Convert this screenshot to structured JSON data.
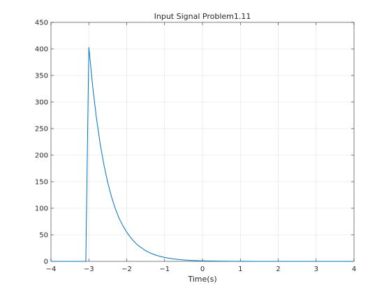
{
  "chart_data": {
    "type": "line",
    "title": "Input Signal Problem1.11",
    "xlabel": "Time(s)",
    "ylabel": "",
    "xlim": [
      -4,
      4
    ],
    "ylim": [
      0,
      450
    ],
    "xticks": [
      -4,
      -3,
      -2,
      -1,
      0,
      1,
      2,
      3,
      4
    ],
    "xtick_labels": [
      "−4",
      "−3",
      "−2",
      "−1",
      "0",
      "1",
      "2",
      "3",
      "4"
    ],
    "yticks": [
      0,
      50,
      100,
      150,
      200,
      250,
      300,
      350,
      400,
      450
    ],
    "ytick_labels": [
      "0",
      "50",
      "100",
      "150",
      "200",
      "250",
      "300",
      "350",
      "400",
      "450"
    ],
    "grid": true,
    "line_color": "#0072bd",
    "series": [
      {
        "x": [
          -4,
          -3.08,
          -3.0,
          -2.9,
          -2.8,
          -2.7,
          -2.6,
          -2.5,
          -2.4,
          -2.3,
          -2.2,
          -2.1,
          -2.0,
          -1.9,
          -1.8,
          -1.7,
          -1.6,
          -1.5,
          -1.4,
          -1.3,
          -1.2,
          -1.1,
          -1.0,
          -0.9,
          -0.8,
          -0.7,
          -0.6,
          -0.5,
          -0.4,
          -0.3,
          -0.2,
          -0.1,
          0.0,
          0.2,
          0.4,
          0.6,
          0.8,
          1.0,
          1.5,
          2.0,
          2.5,
          3.0,
          3.5,
          4.0
        ],
        "y": [
          0,
          0,
          403,
          330,
          270,
          221,
          181,
          148,
          121,
          99,
          81,
          67,
          55,
          45,
          37,
          30,
          25,
          20,
          16.5,
          13.5,
          11,
          9.1,
          7.4,
          6.1,
          5.0,
          4.1,
          3.3,
          2.7,
          2.2,
          1.8,
          1.5,
          1.2,
          1.0,
          0.7,
          0.45,
          0.3,
          0.2,
          0.14,
          0.05,
          0.02,
          0.01,
          0,
          0,
          0
        ]
      }
    ]
  }
}
